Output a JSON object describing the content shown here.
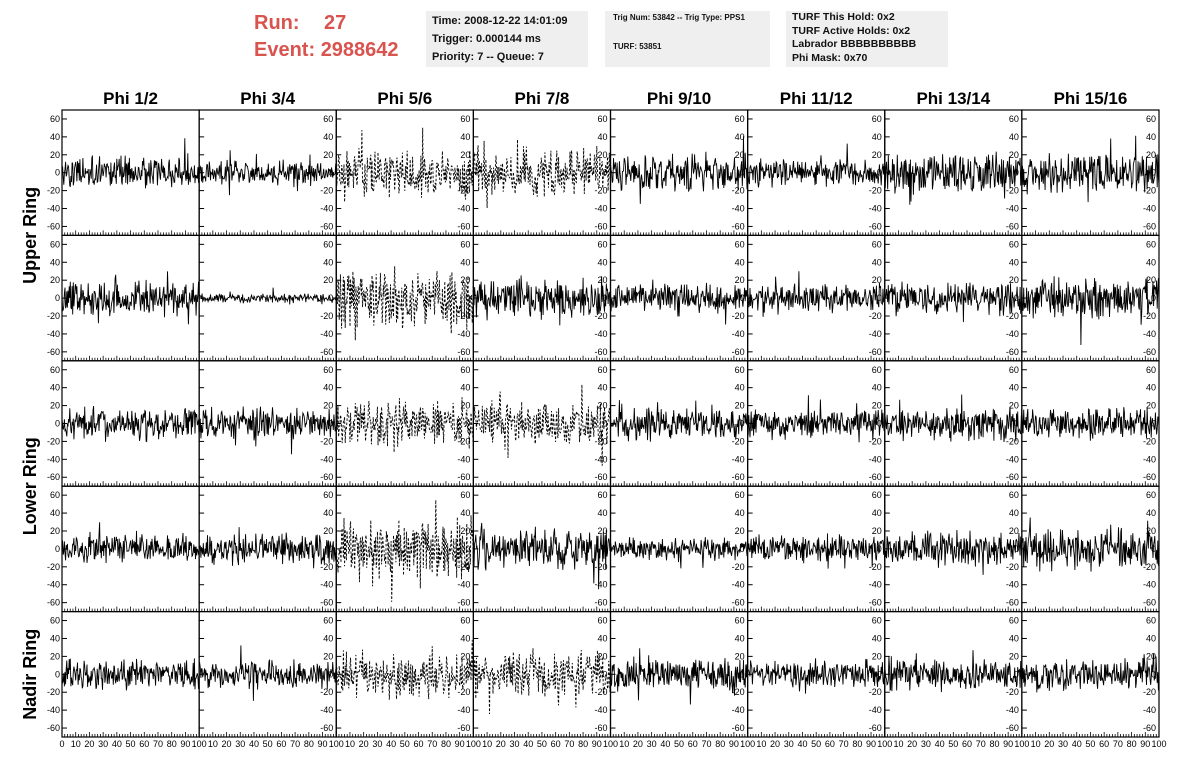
{
  "header": {
    "run_label": "Run:",
    "run_value": "27",
    "event_label": "Event:",
    "event_value": "2988642",
    "box1": [
      "Time: 2008-12-22 14:01:09",
      "Trigger: 0.000144 ms",
      "Priority: 7 -- Queue: 7"
    ],
    "box2": [
      "Trig Num: 53842 -- Trig Type: PPS1",
      "TURF: 53851"
    ],
    "box3": [
      "TURF This Hold: 0x2",
      "TURF Active Holds: 0x2",
      "Labrador BBBBBBBBBB",
      "Phi Mask: 0x70"
    ],
    "colors": {
      "run_event": "#d9534f",
      "info_bg": "#efefef"
    }
  },
  "chart_data": {
    "type": "line",
    "columns": [
      "Phi 1/2",
      "Phi 3/4",
      "Phi 5/6",
      "Phi 7/8",
      "Phi 9/10",
      "Phi 11/12",
      "Phi 13/14",
      "Phi 15/16"
    ],
    "ring_labels": [
      "Upper Ring",
      "Lower Ring",
      "Nadir Ring"
    ],
    "rows": 5,
    "xlim": [
      0,
      100
    ],
    "ylim": [
      -70,
      70
    ],
    "x_ticks": [
      0,
      10,
      20,
      30,
      40,
      50,
      60,
      70,
      80,
      90,
      100
    ],
    "x_tick_labels": [
      "0",
      "10",
      "20",
      "30",
      "40",
      "50",
      "60",
      "70",
      "80",
      "90",
      "100"
    ],
    "y_ticks": [
      -60,
      -40,
      -20,
      0,
      20,
      40,
      60
    ],
    "y_tick_labels": [
      "-60",
      "-40",
      "-20",
      "0",
      "20",
      "40",
      "60"
    ],
    "dashed_cells": [
      [
        0,
        2
      ],
      [
        0,
        3
      ],
      [
        1,
        2
      ],
      [
        2,
        2
      ],
      [
        2,
        3
      ],
      [
        3,
        2
      ],
      [
        4,
        2
      ],
      [
        4,
        3
      ]
    ],
    "amplitude": [
      [
        14,
        10,
        22,
        22,
        16,
        12,
        18,
        18
      ],
      [
        16,
        4,
        26,
        18,
        12,
        12,
        14,
        18
      ],
      [
        14,
        14,
        20,
        18,
        14,
        14,
        14,
        14
      ],
      [
        12,
        14,
        26,
        16,
        10,
        12,
        14,
        18
      ],
      [
        14,
        12,
        20,
        20,
        14,
        12,
        14,
        14
      ]
    ]
  }
}
